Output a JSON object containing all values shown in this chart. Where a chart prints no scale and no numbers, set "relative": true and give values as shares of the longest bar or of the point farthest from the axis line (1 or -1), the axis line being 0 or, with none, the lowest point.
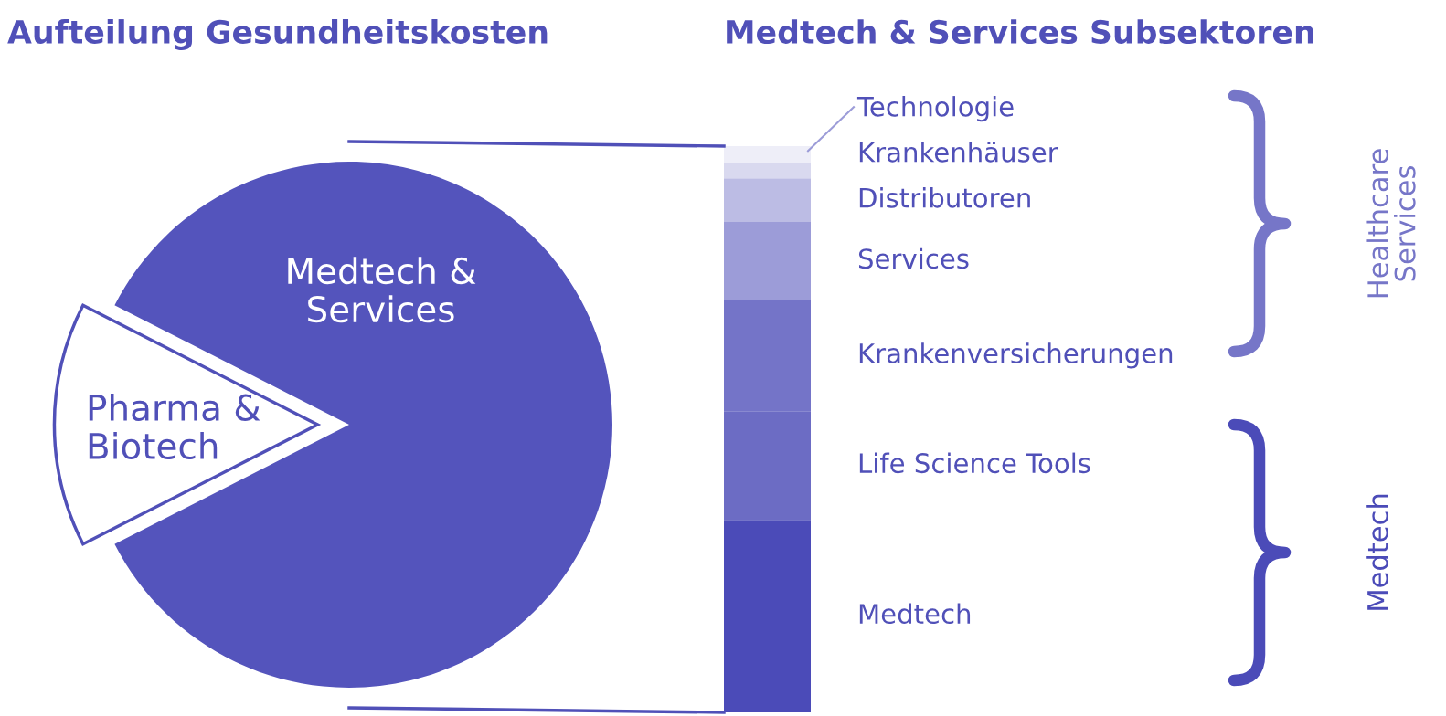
{
  "chart_data": [
    {
      "type": "pie",
      "title": "Aufteilung Gesundheitskosten",
      "categories": [
        "Pharma & Biotech",
        "Medtech & Services"
      ],
      "values": [
        15,
        85
      ],
      "colors": [
        "#ffffff",
        "#5454bc"
      ]
    },
    {
      "type": "bar",
      "stacked": true,
      "relative": true,
      "title": "Medtech & Services Subsektoren",
      "categories": [
        null
      ],
      "series": [
        {
          "name": "Medtech",
          "color": "#4b4bb8",
          "values": [
            0.34
          ]
        },
        {
          "name": "Life Science Tools",
          "color": "#6c6cc4",
          "values": [
            0.192
          ]
        },
        {
          "name": "Krankenversicherungen",
          "color": "#7474c8",
          "values": [
            0.196
          ]
        },
        {
          "name": "Services",
          "color": "#9c9cd8",
          "values": [
            0.138
          ]
        },
        {
          "name": "Distributoren",
          "color": "#bcbce4",
          "values": [
            0.077
          ]
        },
        {
          "name": "Krankenhäuser",
          "color": "#d9d9ef",
          "values": [
            0.027
          ]
        },
        {
          "name": "Technologie",
          "color": "#eeeef8",
          "values": [
            0.03
          ]
        }
      ],
      "annotations": [
        "Healthcare\nServices",
        "Medtech"
      ]
    }
  ]
}
